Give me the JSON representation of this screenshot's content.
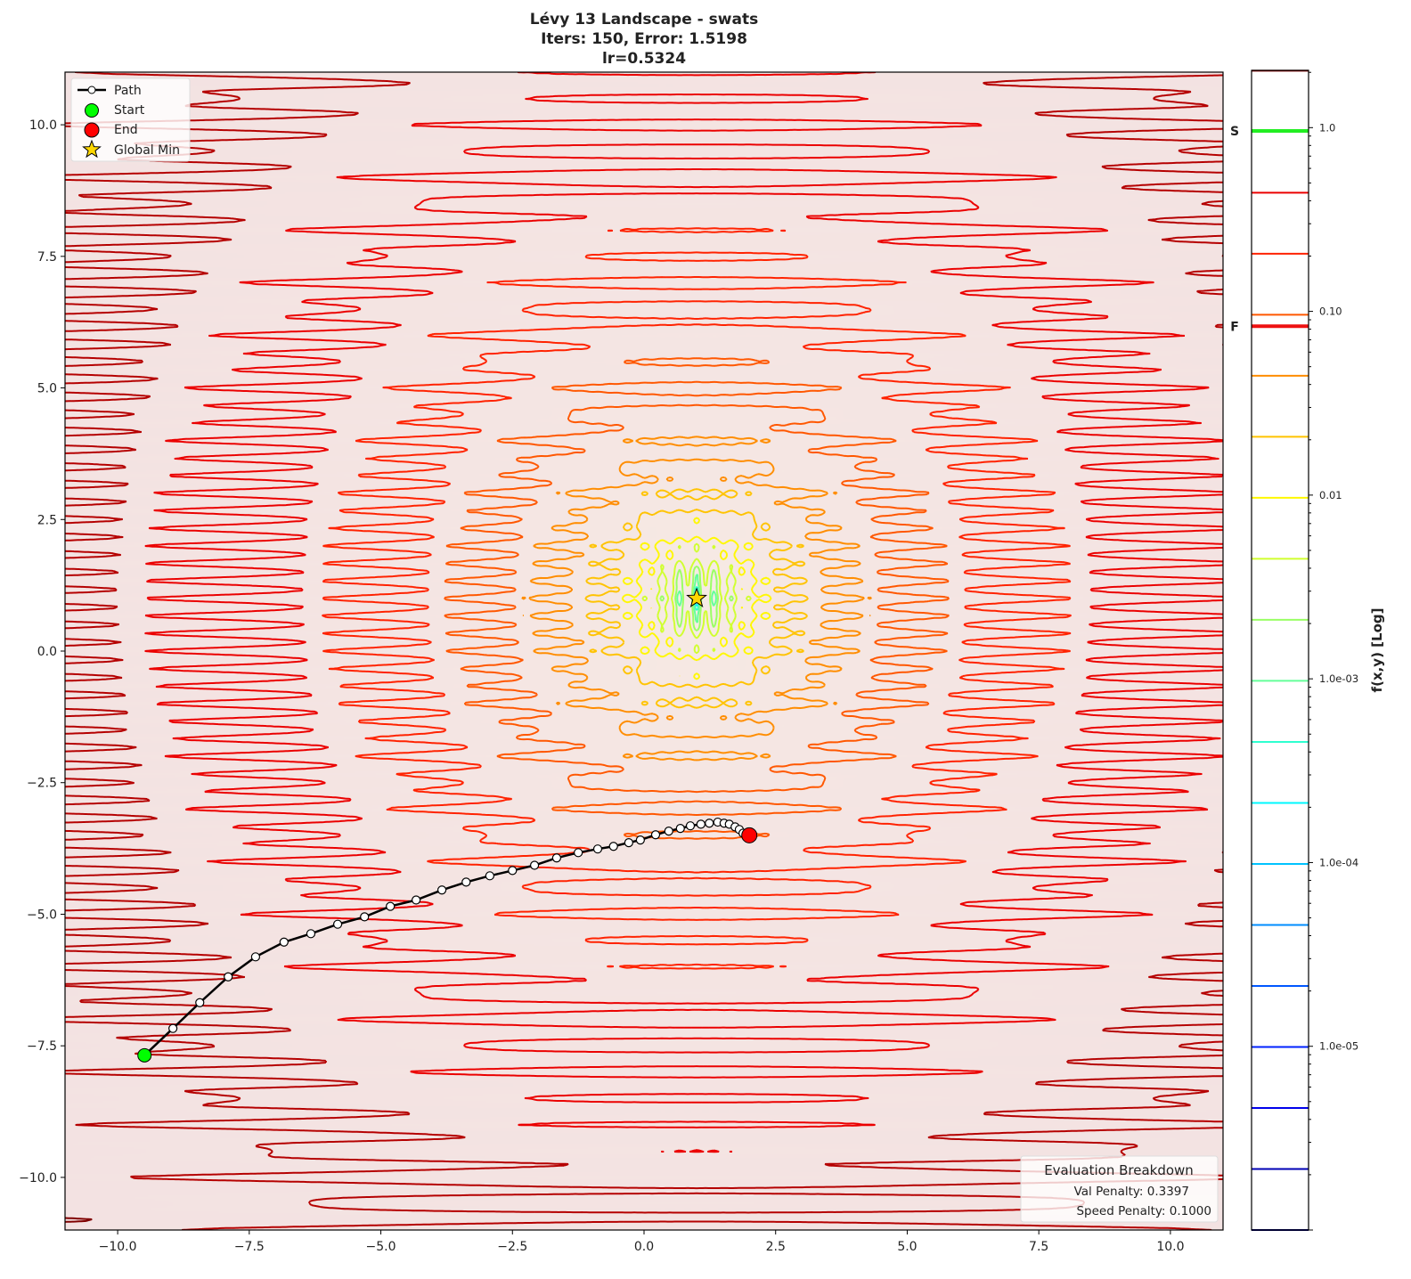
{
  "chart_data": {
    "type": "contour",
    "title_lines": [
      "Lévy 13 Landscape - swats",
      "Iters: 150, Error: 1.5198",
      "lr=0.5324"
    ],
    "xlim": [
      -11,
      11
    ],
    "ylim": [
      -11,
      11
    ],
    "x_ticks": [
      -10,
      -7.5,
      -5,
      -2.5,
      0,
      2.5,
      5,
      7.5,
      10
    ],
    "x_tick_labels": [
      "−10.0",
      "−7.5",
      "−5.0",
      "−2.5",
      "0.0",
      "2.5",
      "5.0",
      "7.5",
      "10.0"
    ],
    "y_ticks": [
      10,
      7.5,
      5,
      2.5,
      0,
      -2.5,
      -5,
      -7.5,
      -10
    ],
    "y_tick_labels": [
      "10.0",
      "7.5",
      "5.0",
      "2.5",
      "0.0",
      "−2.5",
      "−5.0",
      "−7.5",
      "−10.0"
    ],
    "function": "levy13",
    "colormap": "jet",
    "contour_levels_log10_range": [
      -6,
      0.31
    ],
    "contour_level_count": 20,
    "global_min": {
      "x": 1,
      "y": 1
    },
    "start": {
      "x": -9.49,
      "y": -7.68
    },
    "end": {
      "x": 2.0,
      "y": -3.5
    },
    "path": [
      [
        -9.49,
        -7.68
      ],
      [
        -8.95,
        -7.17
      ],
      [
        -8.44,
        -6.68
      ],
      [
        -7.9,
        -6.19
      ],
      [
        -7.38,
        -5.81
      ],
      [
        -6.84,
        -5.53
      ],
      [
        -6.33,
        -5.37
      ],
      [
        -5.82,
        -5.19
      ],
      [
        -5.31,
        -5.05
      ],
      [
        -4.82,
        -4.85
      ],
      [
        -4.33,
        -4.73
      ],
      [
        -3.84,
        -4.54
      ],
      [
        -3.38,
        -4.39
      ],
      [
        -2.93,
        -4.27
      ],
      [
        -2.5,
        -4.17
      ],
      [
        -2.08,
        -4.07
      ],
      [
        -1.66,
        -3.93
      ],
      [
        -1.25,
        -3.83
      ],
      [
        -0.88,
        -3.76
      ],
      [
        -0.58,
        -3.71
      ],
      [
        -0.29,
        -3.64
      ],
      [
        -0.07,
        -3.59
      ],
      [
        0.22,
        -3.49
      ],
      [
        0.47,
        -3.42
      ],
      [
        0.69,
        -3.37
      ],
      [
        0.88,
        -3.32
      ],
      [
        1.08,
        -3.29
      ],
      [
        1.24,
        -3.27
      ],
      [
        1.4,
        -3.25
      ],
      [
        1.52,
        -3.27
      ],
      [
        1.62,
        -3.29
      ],
      [
        1.73,
        -3.34
      ],
      [
        1.81,
        -3.39
      ],
      [
        1.88,
        -3.46
      ],
      [
        1.95,
        -3.53
      ],
      [
        2.0,
        -3.5
      ]
    ],
    "legend": {
      "placement": "top-left",
      "entries": [
        "Path",
        "Start",
        "End",
        "Global Min"
      ]
    },
    "colorbar": {
      "label": "f(x,y) [Log]",
      "scale": "log",
      "range": [
        1e-06,
        2.05
      ],
      "ticks": [
        1.0,
        0.1,
        0.01,
        0.001,
        0.0001,
        1e-05
      ],
      "tick_labels": [
        "1.0",
        "0.10",
        "0.01",
        "1.0e-03",
        "1.0e-04",
        "1.0e-05"
      ],
      "start_marker": {
        "label": "S",
        "value": 0.96,
        "color": "#22ee22"
      },
      "final_marker": {
        "label": "F",
        "value": 0.083,
        "color": "#ee1111"
      }
    },
    "annotation": {
      "title": "Evaluation Breakdown",
      "lines": [
        "Val Penalty: 0.3397",
        "Speed Penalty: 0.1000"
      ],
      "placement": "bottom-right"
    },
    "colors": {
      "path": "#000000",
      "start": "#00ff00",
      "end": "#ff0000",
      "global_min": "#ffd700"
    }
  }
}
